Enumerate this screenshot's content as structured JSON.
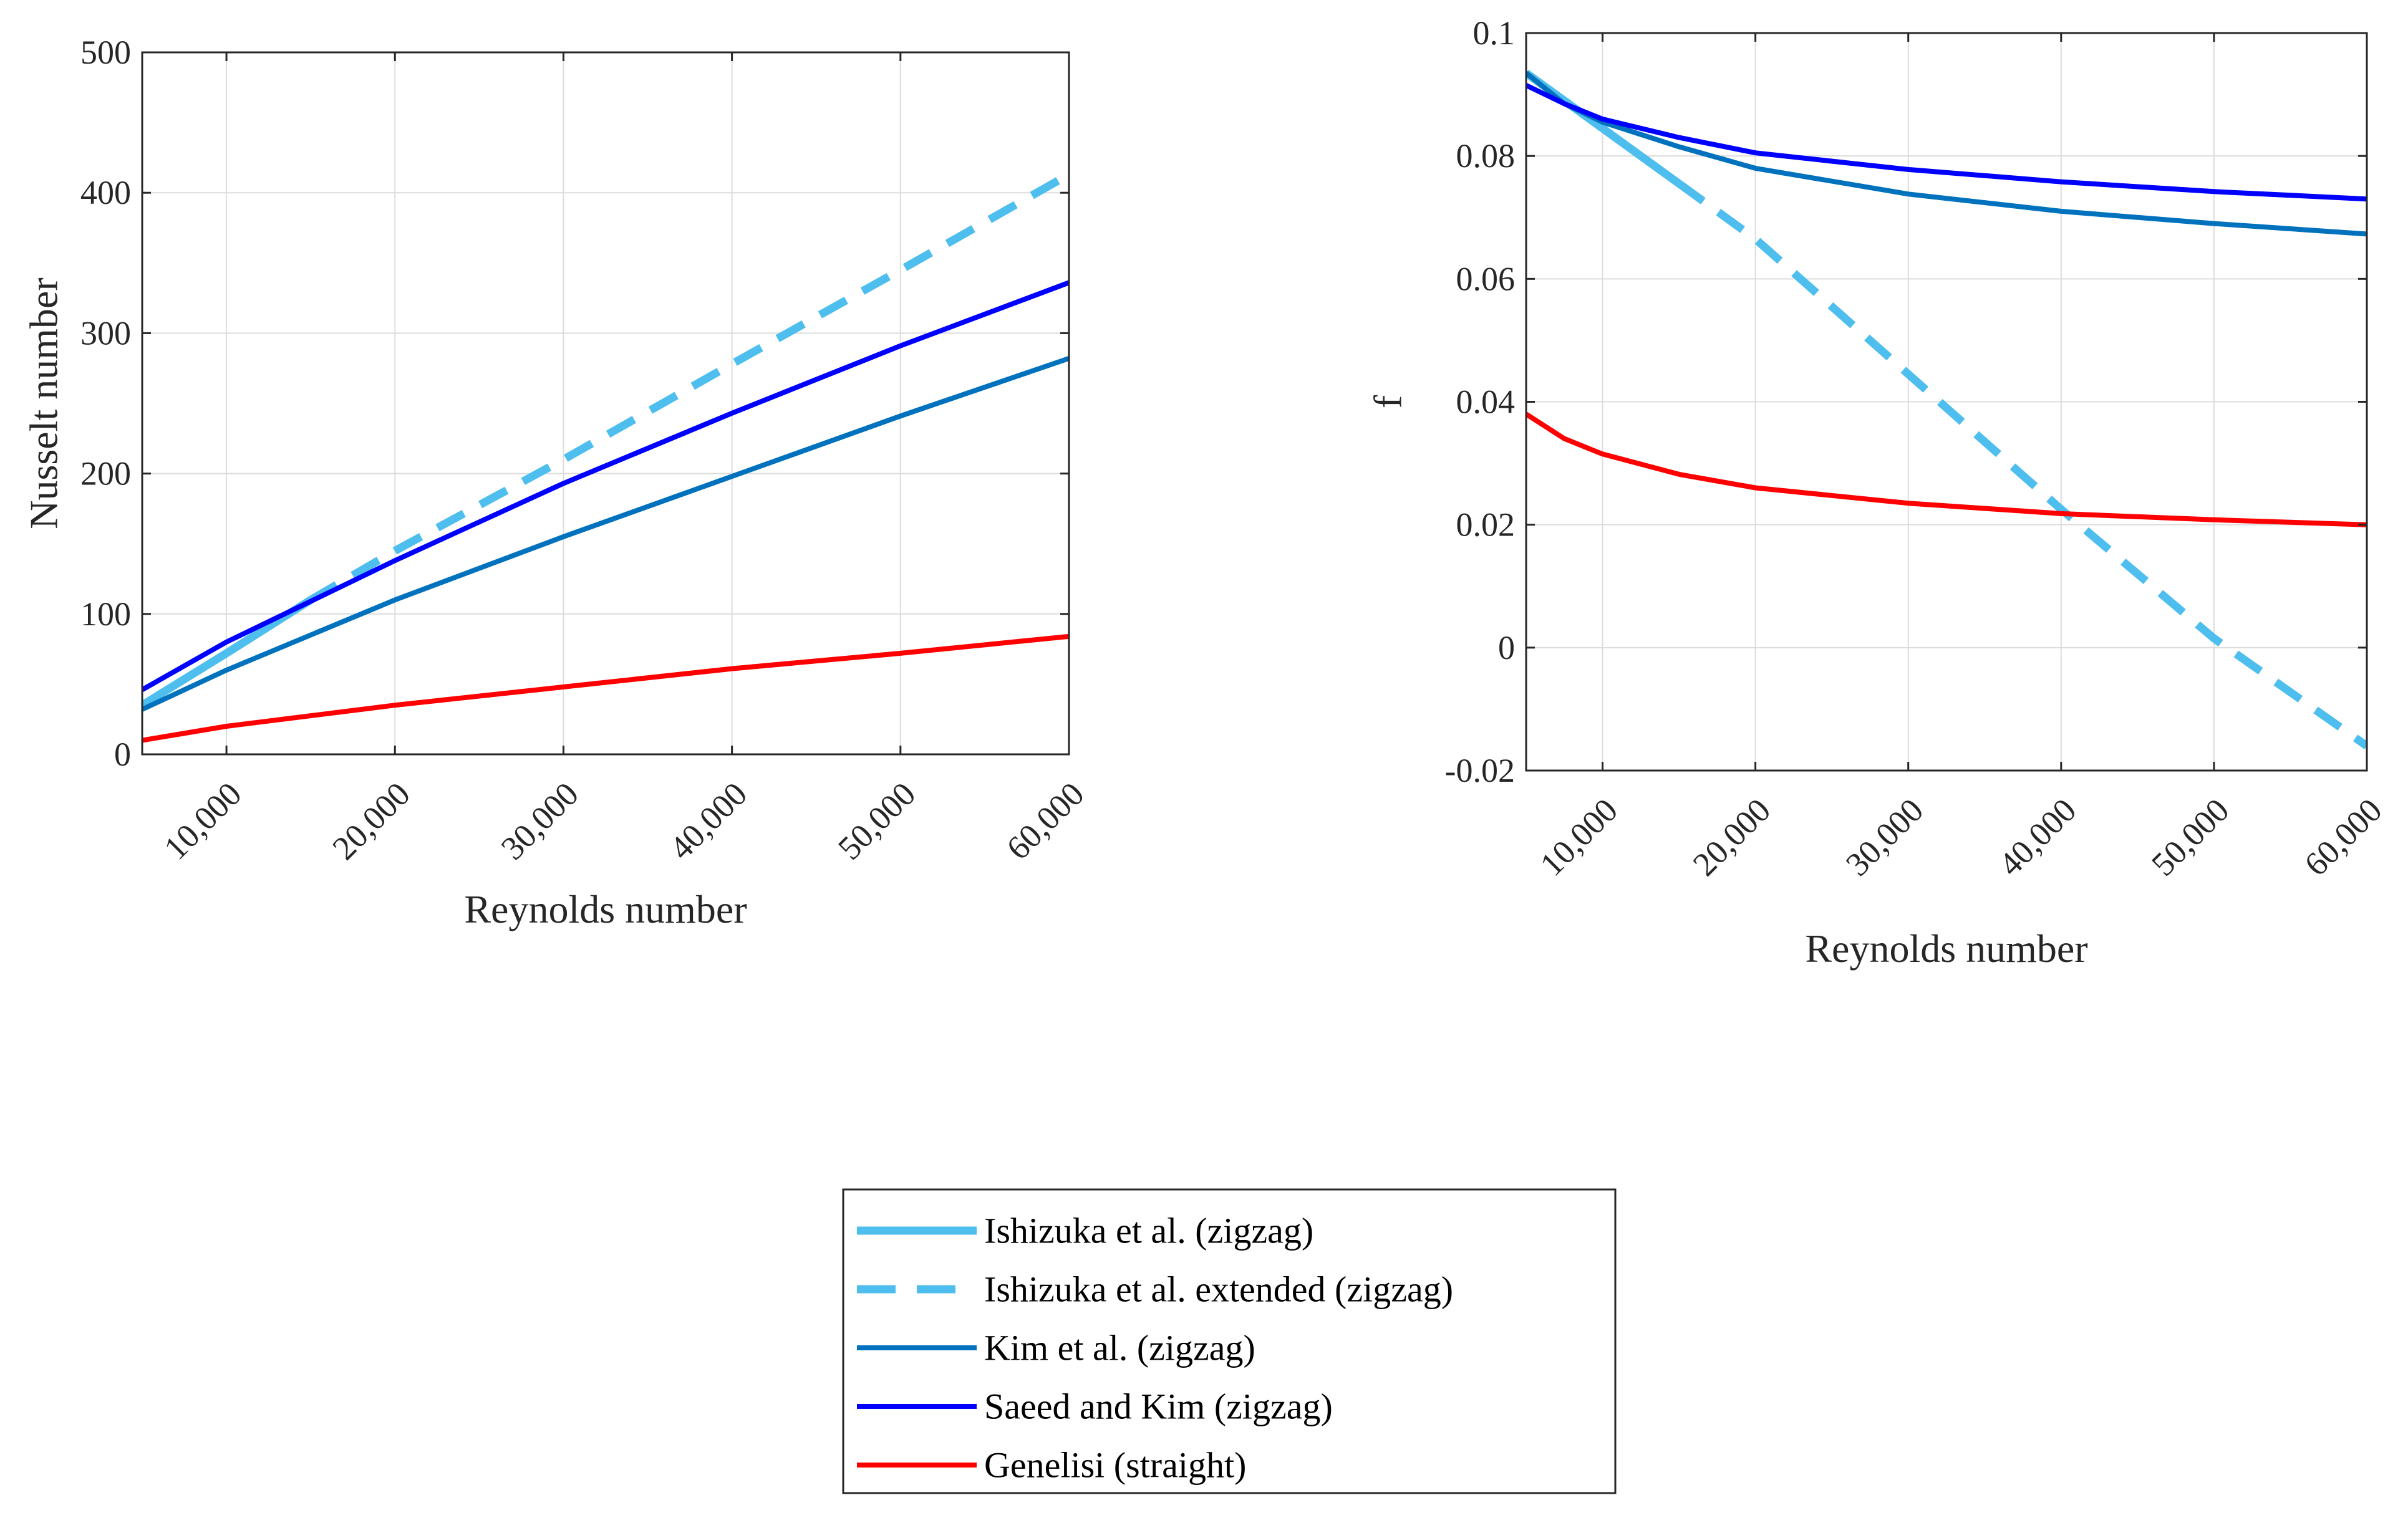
{
  "chart_data": [
    {
      "type": "line",
      "title": "",
      "xlabel": "Reynolds number",
      "ylabel": "Nusselt number",
      "xlim": [
        5000,
        60000
      ],
      "ylim": [
        0,
        500
      ],
      "grid": true,
      "xticks": [
        10000,
        20000,
        30000,
        40000,
        50000,
        60000
      ],
      "xtick_labels": [
        "10,000",
        "20,000",
        "30,000",
        "40,000",
        "50,000",
        "60,000"
      ],
      "yticks": [
        0,
        100,
        200,
        300,
        400,
        500
      ],
      "ytick_labels": [
        "0",
        "100",
        "200",
        "300",
        "400",
        "500"
      ],
      "series": [
        {
          "name": "Ishizuka et al. (zigzag)",
          "color": "#4DBEEE",
          "style": "solid-thick",
          "x": [
            5000,
            10000,
            15000
          ],
          "y": [
            35,
            72,
            110
          ]
        },
        {
          "name": "Ishizuka et al. extended (zigzag)",
          "color": "#4DBEEE",
          "style": "dashed",
          "x": [
            15000,
            20000,
            30000,
            40000,
            50000,
            60000
          ],
          "y": [
            110,
            145,
            210,
            278,
            345,
            413
          ]
        },
        {
          "name": "Kim et al. (zigzag)",
          "color": "#0072BD",
          "style": "solid",
          "x": [
            5000,
            10000,
            20000,
            30000,
            40000,
            50000,
            60000
          ],
          "y": [
            32,
            60,
            110,
            155,
            198,
            241,
            282
          ]
        },
        {
          "name": "Saeed and Kim (zigzag)",
          "color": "#0000FF",
          "style": "solid",
          "x": [
            5000,
            10000,
            20000,
            30000,
            40000,
            50000,
            60000
          ],
          "y": [
            46,
            80,
            138,
            193,
            243,
            291,
            336
          ]
        },
        {
          "name": "Genelisi (straight)",
          "color": "#FF0000",
          "style": "solid",
          "x": [
            5000,
            10000,
            20000,
            30000,
            40000,
            50000,
            60000
          ],
          "y": [
            10,
            20,
            35,
            48,
            61,
            72,
            84
          ]
        }
      ]
    },
    {
      "type": "line",
      "title": "",
      "xlabel": "Reynolds number",
      "ylabel": "f",
      "xlim": [
        5000,
        60000
      ],
      "ylim": [
        -0.02,
        0.1
      ],
      "grid": true,
      "xticks": [
        10000,
        20000,
        30000,
        40000,
        50000,
        60000
      ],
      "xtick_labels": [
        "10,000",
        "20,000",
        "30,000",
        "40,000",
        "50,000",
        "60,000"
      ],
      "yticks": [
        -0.02,
        0,
        0.02,
        0.04,
        0.06,
        0.08,
        0.1
      ],
      "ytick_labels": [
        "-0.02",
        "0",
        "0.02",
        "0.04",
        "0.06",
        "0.08",
        "0.1"
      ],
      "series": [
        {
          "name": "Ishizuka et al. (zigzag)",
          "color": "#4DBEEE",
          "style": "solid-thick",
          "x": [
            5000,
            10000,
            15000
          ],
          "y": [
            0.0935,
            0.0845,
            0.0755
          ]
        },
        {
          "name": "Ishizuka et al. extended (zigzag)",
          "color": "#4DBEEE",
          "style": "dashed",
          "x": [
            15000,
            20000,
            30000,
            40000,
            50000,
            60000
          ],
          "y": [
            0.0755,
            0.0665,
            0.0445,
            0.0225,
            0.0015,
            -0.016
          ]
        },
        {
          "name": "Kim et al. (zigzag)",
          "color": "#0072BD",
          "style": "solid",
          "x": [
            5000,
            7500,
            10000,
            15000,
            20000,
            30000,
            40000,
            50000,
            60000
          ],
          "y": [
            0.0935,
            0.0885,
            0.0855,
            0.0815,
            0.078,
            0.0738,
            0.071,
            0.069,
            0.0673
          ]
        },
        {
          "name": "Saeed and Kim (zigzag)",
          "color": "#0000FF",
          "style": "solid",
          "x": [
            5000,
            7500,
            10000,
            15000,
            20000,
            30000,
            40000,
            50000,
            60000
          ],
          "y": [
            0.0915,
            0.0885,
            0.086,
            0.083,
            0.0805,
            0.0778,
            0.0758,
            0.0742,
            0.073
          ]
        },
        {
          "name": "Genelisi (straight)",
          "color": "#FF0000",
          "style": "solid",
          "x": [
            5000,
            7500,
            10000,
            15000,
            20000,
            30000,
            40000,
            50000,
            60000
          ],
          "y": [
            0.038,
            0.034,
            0.0315,
            0.0282,
            0.026,
            0.0235,
            0.0218,
            0.0208,
            0.02
          ]
        }
      ]
    }
  ],
  "legend": {
    "entries": [
      {
        "label": "Ishizuka et al. (zigzag)",
        "color": "#4DBEEE",
        "style": "solid-thick"
      },
      {
        "label": "Ishizuka et al. extended (zigzag)",
        "color": "#4DBEEE",
        "style": "dashed"
      },
      {
        "label": "Kim et al. (zigzag)",
        "color": "#0072BD",
        "style": "solid"
      },
      {
        "label": "Saeed and Kim (zigzag)",
        "color": "#0000FF",
        "style": "solid"
      },
      {
        "label": "Genelisi (straight)",
        "color": "#FF0000",
        "style": "solid"
      }
    ]
  }
}
